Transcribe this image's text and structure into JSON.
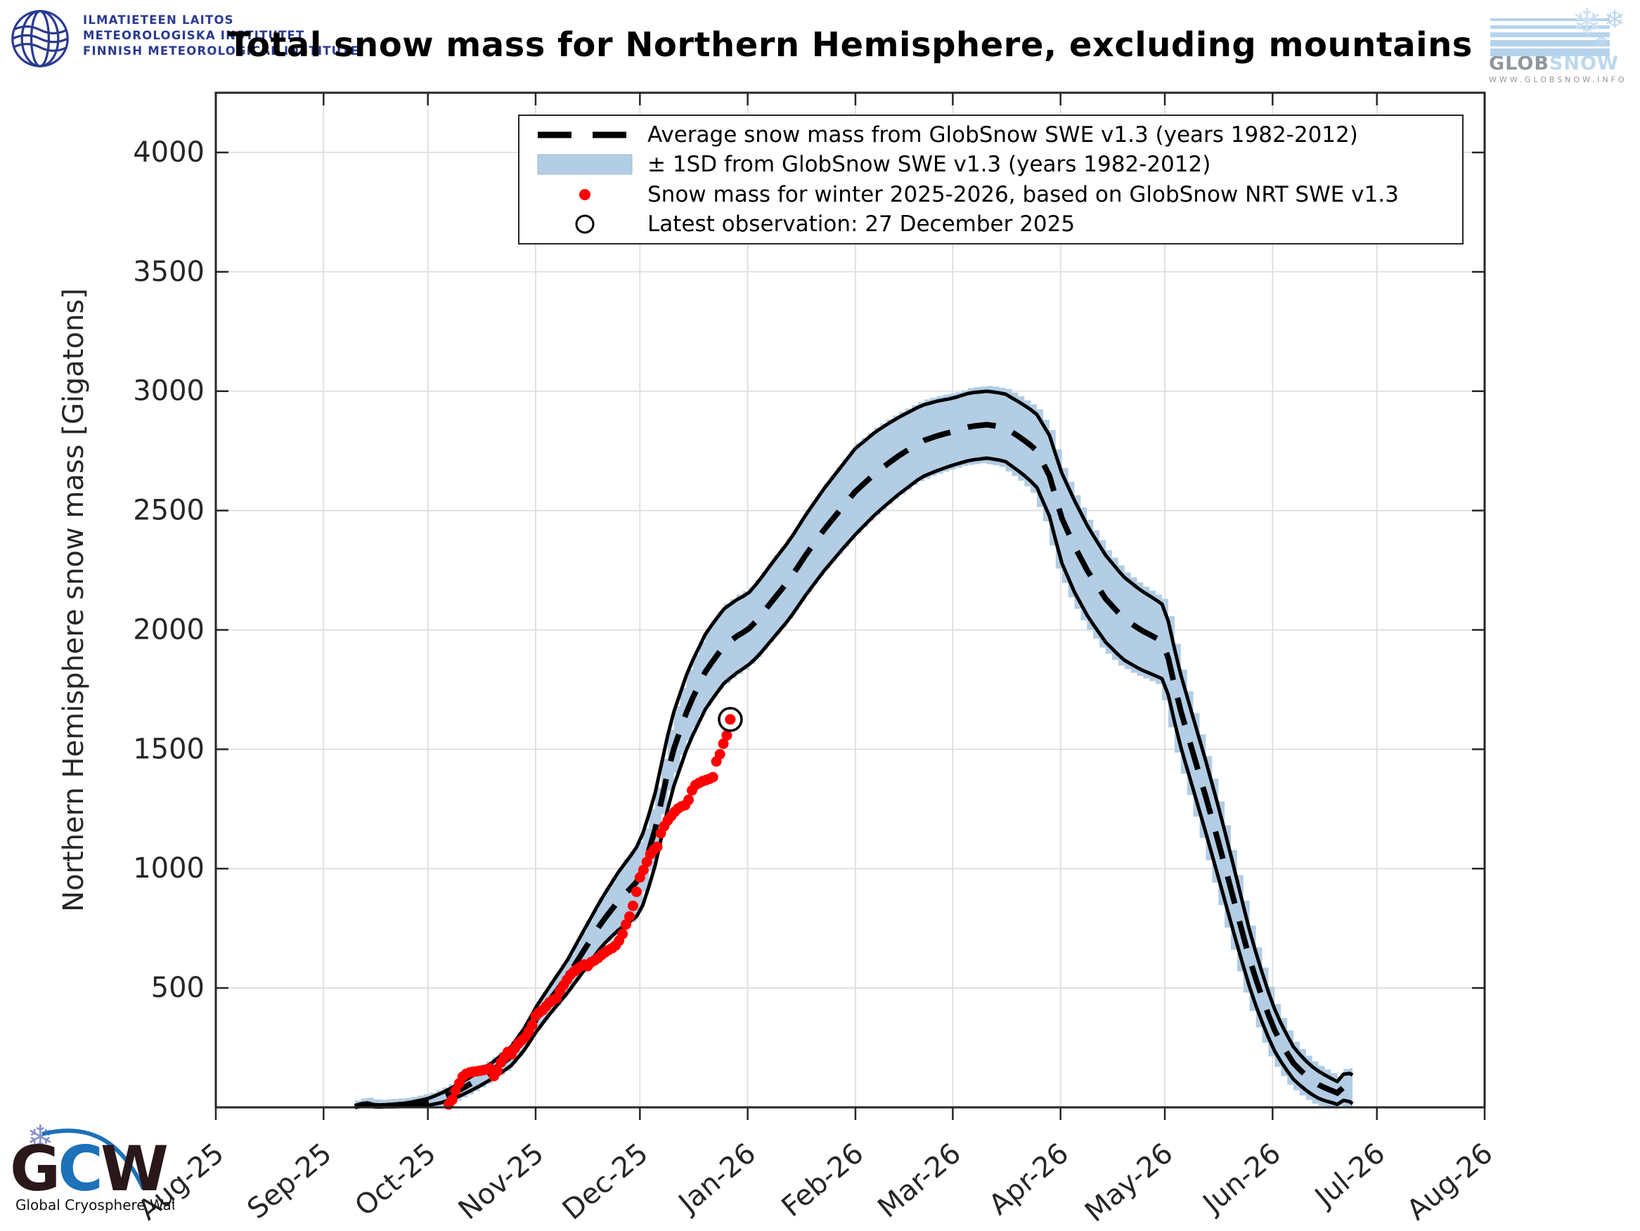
{
  "title": "Total snow mass for Northern Hemisphere, excluding mountains",
  "header": {
    "fmi": {
      "lines": [
        "ILMATIETEEN LAITOS",
        "METEOROLOGISKA INSTITUTET",
        "FINNISH METEOROLOGICAL INSTITUTE"
      ]
    },
    "globsnow": {
      "glob": "GLOB",
      "snow": "SNOW",
      "url": "WWW.GLOBSNOW.INFO"
    }
  },
  "footer": {
    "gcw_letters": [
      "G",
      "C",
      "W"
    ],
    "caption": "Global Cryosphere Watch"
  },
  "legend": {
    "items": [
      {
        "label": "Average snow mass from GlobSnow SWE v1.3 (years 1982-2012)",
        "sample": "dashed-line"
      },
      {
        "label": "± 1SD from GlobSnow SWE v1.3 (years 1982-2012)",
        "sample": "band-patch"
      },
      {
        "label": "Snow mass for winter 2025-2026, based on GlobSnow NRT SWE v1.3",
        "sample": "red-dot"
      },
      {
        "label": "Latest observation: 27 December 2025",
        "sample": "open-circle"
      }
    ]
  },
  "chart_data": {
    "type": "area",
    "title": "Total snow mass for Northern Hemisphere, excluding mountains",
    "xlabel": "",
    "ylabel": "Northern Hemisphere snow mass [Gigatons]",
    "x_tick_labels": [
      "Aug-25",
      "Sep-25",
      "Oct-25",
      "Nov-25",
      "Dec-25",
      "Jan-26",
      "Feb-26",
      "Mar-26",
      "Apr-26",
      "May-26",
      "Jun-26",
      "Jul-26",
      "Aug-26"
    ],
    "x_tick_days": [
      0,
      31,
      61,
      92,
      122,
      153,
      184,
      212,
      243,
      273,
      304,
      334,
      365
    ],
    "y_ticks": [
      500,
      1000,
      1500,
      2000,
      2500,
      3000,
      3500,
      4000
    ],
    "ylim": [
      0,
      4250
    ],
    "xlim_days": [
      0,
      365
    ],
    "grid": true,
    "legend_position": "upper center",
    "units": "Gigatons",
    "climatology_years": "1982-2012",
    "climatology_mean_sd": [
      [
        40,
        3,
        3
      ],
      [
        43,
        14,
        7
      ],
      [
        46,
        5,
        4
      ],
      [
        50,
        7,
        5
      ],
      [
        55,
        11,
        7
      ],
      [
        61,
        22,
        14
      ],
      [
        65,
        40,
        20
      ],
      [
        70,
        72,
        26
      ],
      [
        75,
        112,
        30
      ],
      [
        80,
        158,
        34
      ],
      [
        85,
        215,
        40
      ],
      [
        89,
        290,
        46
      ],
      [
        92,
        365,
        52
      ],
      [
        96,
        448,
        58
      ],
      [
        101,
        545,
        68
      ],
      [
        106,
        660,
        85
      ],
      [
        111,
        775,
        100
      ],
      [
        116,
        868,
        122
      ],
      [
        119,
        912,
        135
      ],
      [
        122,
        960,
        150
      ],
      [
        126,
        1140,
        152
      ],
      [
        131,
        1470,
        155
      ],
      [
        136,
        1680,
        157
      ],
      [
        141,
        1830,
        157
      ],
      [
        146,
        1930,
        156
      ],
      [
        150,
        1975,
        153
      ],
      [
        153,
        2000,
        150
      ],
      [
        156,
        2045,
        155
      ],
      [
        160,
        2120,
        160
      ],
      [
        165,
        2210,
        164
      ],
      [
        170,
        2320,
        168
      ],
      [
        175,
        2420,
        172
      ],
      [
        180,
        2510,
        176
      ],
      [
        184,
        2580,
        180
      ],
      [
        190,
        2660,
        172
      ],
      [
        196,
        2725,
        162
      ],
      [
        203,
        2790,
        150
      ],
      [
        208,
        2815,
        145
      ],
      [
        212,
        2830,
        140
      ],
      [
        217,
        2852,
        141
      ],
      [
        222,
        2860,
        140
      ],
      [
        227,
        2848,
        141
      ],
      [
        232,
        2800,
        146
      ],
      [
        236,
        2755,
        152
      ],
      [
        240,
        2640,
        170
      ],
      [
        243,
        2480,
        188
      ],
      [
        247,
        2350,
        192
      ],
      [
        251,
        2240,
        188
      ],
      [
        256,
        2130,
        182
      ],
      [
        261,
        2050,
        174
      ],
      [
        266,
        2000,
        166
      ],
      [
        270,
        1970,
        160
      ],
      [
        273,
        1945,
        155
      ],
      [
        277,
        1690,
        152
      ],
      [
        281,
        1490,
        150
      ],
      [
        285,
        1290,
        150
      ],
      [
        289,
        1080,
        148
      ],
      [
        293,
        860,
        138
      ],
      [
        297,
        640,
        120
      ],
      [
        300,
        500,
        108
      ],
      [
        304,
        340,
        90
      ],
      [
        307,
        255,
        78
      ],
      [
        310,
        185,
        68
      ],
      [
        313,
        140,
        62
      ],
      [
        316,
        105,
        58
      ],
      [
        318,
        88,
        56
      ],
      [
        321,
        70,
        50
      ],
      [
        323,
        58,
        47
      ],
      [
        325,
        95,
        58
      ],
      [
        327,
        75,
        60
      ]
    ],
    "observations_day_value": [
      [
        67,
        12
      ],
      [
        68,
        32
      ],
      [
        69,
        70
      ],
      [
        70,
        100
      ],
      [
        71,
        128
      ],
      [
        72,
        140
      ],
      [
        73,
        146
      ],
      [
        74,
        149
      ],
      [
        75,
        151
      ],
      [
        76,
        153
      ],
      [
        77,
        156
      ],
      [
        78,
        159
      ],
      [
        79,
        163
      ],
      [
        80,
        131
      ],
      [
        81,
        152
      ],
      [
        82,
        188
      ],
      [
        83,
        209
      ],
      [
        84,
        232
      ],
      [
        85,
        222
      ],
      [
        86,
        247
      ],
      [
        87,
        267
      ],
      [
        88,
        281
      ],
      [
        89,
        294
      ],
      [
        90,
        317
      ],
      [
        91,
        344
      ],
      [
        92,
        383
      ],
      [
        93,
        397
      ],
      [
        94,
        407
      ],
      [
        95,
        423
      ],
      [
        96,
        439
      ],
      [
        97,
        449
      ],
      [
        98,
        458
      ],
      [
        99,
        487
      ],
      [
        100,
        511
      ],
      [
        101,
        534
      ],
      [
        102,
        555
      ],
      [
        103,
        569
      ],
      [
        104,
        579
      ],
      [
        105,
        590
      ],
      [
        106,
        598
      ],
      [
        107,
        592
      ],
      [
        108,
        608
      ],
      [
        109,
        616
      ],
      [
        110,
        626
      ],
      [
        111,
        639
      ],
      [
        112,
        650
      ],
      [
        113,
        659
      ],
      [
        114,
        667
      ],
      [
        115,
        678
      ],
      [
        116,
        698
      ],
      [
        117,
        726
      ],
      [
        118,
        766
      ],
      [
        119,
        799
      ],
      [
        120,
        844
      ],
      [
        121,
        903
      ],
      [
        122,
        963
      ],
      [
        123,
        994
      ],
      [
        124,
        1028
      ],
      [
        125,
        1060
      ],
      [
        126,
        1079
      ],
      [
        127,
        1091
      ],
      [
        128,
        1148
      ],
      [
        129,
        1178
      ],
      [
        130,
        1202
      ],
      [
        131,
        1220
      ],
      [
        132,
        1238
      ],
      [
        133,
        1252
      ],
      [
        134,
        1261
      ],
      [
        135,
        1266
      ],
      [
        136,
        1288
      ],
      [
        137,
        1328
      ],
      [
        138,
        1350
      ],
      [
        139,
        1359
      ],
      [
        140,
        1366
      ],
      [
        141,
        1371
      ],
      [
        142,
        1376
      ],
      [
        143,
        1383
      ],
      [
        144,
        1449
      ],
      [
        145,
        1479
      ],
      [
        146,
        1523
      ],
      [
        147,
        1558
      ],
      [
        148,
        1625
      ]
    ],
    "latest_observation": {
      "day": 148,
      "value": 1625,
      "date_label": "27 December 2025"
    },
    "colors": {
      "band_fill": "#b2cde4",
      "band_edge": "#000000",
      "mean_line": "#000000",
      "observation": "#ff0000",
      "latest_marker": "#000000",
      "grid": "#dcdcdc",
      "spine": "#262626",
      "tick_label": "#262626"
    }
  }
}
